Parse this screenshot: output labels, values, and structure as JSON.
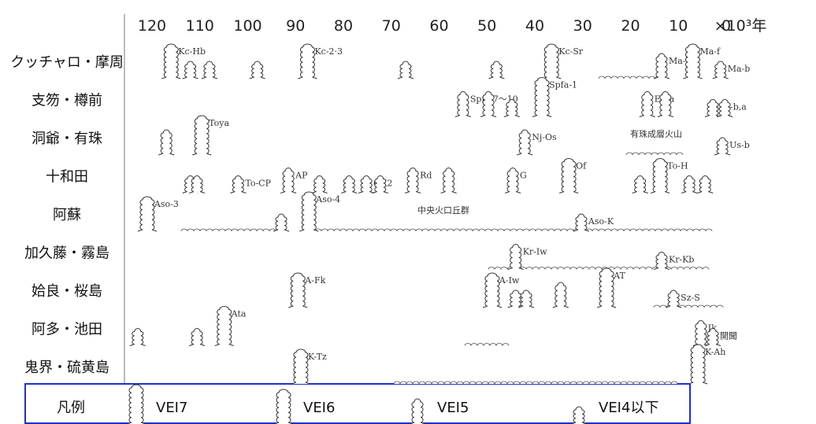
{
  "axis": {
    "ticks": [
      120,
      110,
      100,
      90,
      80,
      70,
      60,
      50,
      40,
      30,
      20,
      10,
      0
    ],
    "unit": "×10³年"
  },
  "rows": [
    {
      "name": "クッチャロ・摩周",
      "events": [
        {
          "label": "Kc-Hb",
          "age": 116,
          "vei": 6
        },
        {
          "label": null,
          "age": 112,
          "vei": 4
        },
        {
          "label": null,
          "age": 108,
          "vei": 4
        },
        {
          "label": null,
          "age": 98,
          "vei": 4
        },
        {
          "label": "Kc-2·3",
          "age": 87.5,
          "vei": 6
        },
        {
          "label": null,
          "age": 67,
          "vei": 4
        },
        {
          "label": null,
          "age": 48,
          "vei": 4
        },
        {
          "label": "Kc-Sr",
          "age": 36.5,
          "vei": 6
        },
        {
          "label": "Ma-l",
          "age": 13.5,
          "vei": 5
        },
        {
          "label": "Ma-f",
          "age": 7,
          "vei": 6
        },
        {
          "label": "Ma-b",
          "age": 1.2,
          "vei": 4
        }
      ]
    },
    {
      "name": "支笏・樽前",
      "events": [
        {
          "label": "Spfa-7～10",
          "age": 55,
          "vei": 5
        },
        {
          "label": null,
          "age": 49.7,
          "vei": 5
        },
        {
          "label": null,
          "age": 44.8,
          "vei": 4
        },
        {
          "label": "Spfa-1",
          "age": 38.5,
          "vei": 7
        },
        {
          "label": "En-a",
          "age": 16.5,
          "vei": 5
        },
        {
          "label": null,
          "age": 12.7,
          "vei": 5
        },
        {
          "label": "Ta-b,a",
          "age": 2.8,
          "vei": 4
        },
        {
          "label": null,
          "age": 0.3,
          "vei": 4
        }
      ]
    },
    {
      "name": "洞爺・有珠",
      "notes": [
        "有珠成層火山"
      ],
      "events": [
        {
          "label": null,
          "age": 117,
          "vei": 5
        },
        {
          "label": "Toya",
          "age": 109.6,
          "vei": 7
        },
        {
          "label": "Nj-Os",
          "age": 42.1,
          "vei": 5
        },
        {
          "label": "Us-b",
          "age": 0.8,
          "vei": 4
        }
      ]
    },
    {
      "name": "十和田",
      "events": [
        {
          "label": null,
          "age": 112,
          "vei": 4
        },
        {
          "label": null,
          "age": 110.6,
          "vei": 4
        },
        {
          "label": "To-CP",
          "age": 102,
          "vei": 4
        },
        {
          "label": "AP",
          "age": 91.5,
          "vei": 5
        },
        {
          "label": null,
          "age": 85,
          "vei": 4
        },
        {
          "label": null,
          "age": 78.8,
          "vei": 4
        },
        {
          "label": "OK2",
          "age": 75.2,
          "vei": 4
        },
        {
          "label": null,
          "age": 72.3,
          "vei": 4
        },
        {
          "label": "Rd",
          "age": 65.5,
          "vei": 5
        },
        {
          "label": null,
          "age": 58,
          "vei": 5
        },
        {
          "label": "G",
          "age": 44.6,
          "vei": 5
        },
        {
          "label": "Of",
          "age": 32.9,
          "vei": 6
        },
        {
          "label": null,
          "age": 18,
          "vei": 4
        },
        {
          "label": "To-H",
          "age": 13.8,
          "vei": 6
        },
        {
          "label": null,
          "age": 7.7,
          "vei": 4
        },
        {
          "label": null,
          "age": 4.4,
          "vei": 4
        }
      ]
    },
    {
      "name": "阿蘇",
      "notes": [
        "中央火口丘群"
      ],
      "events": [
        {
          "label": "Aso-3",
          "age": 121,
          "vei": 6
        },
        {
          "label": null,
          "age": 93,
          "vei": 4
        },
        {
          "label": "Aso-4",
          "age": 87.2,
          "vei": 7
        },
        {
          "label": "Aso-K",
          "age": 30.3,
          "vei": 4
        }
      ]
    },
    {
      "name": "加久藤・霧島",
      "events": [
        {
          "label": "Kr-Iw",
          "age": 44,
          "vei": 5
        },
        {
          "label": "Kr-Kb",
          "age": 13.5,
          "vei": 4
        }
      ]
    },
    {
      "name": "姶良・桜島",
      "events": [
        {
          "label": "A-Fk",
          "age": 89.5,
          "vei": 6
        },
        {
          "label": "A-Iw",
          "age": 48.9,
          "vei": 6
        },
        {
          "label": null,
          "age": 44,
          "vei": 4
        },
        {
          "label": null,
          "age": 41.8,
          "vei": 4
        },
        {
          "label": null,
          "age": 34.6,
          "vei": 5
        },
        {
          "label": "AT",
          "age": 25,
          "vei": 7
        },
        {
          "label": "Sz-S",
          "age": 11,
          "vei": 4
        }
      ]
    },
    {
      "name": "阿多・池田",
      "events": [
        {
          "label": null,
          "age": 123,
          "vei": 4
        },
        {
          "label": null,
          "age": 110.6,
          "vei": 4
        },
        {
          "label": "Ata",
          "age": 104.9,
          "vei": 7
        },
        {
          "label": "Ik",
          "age": 5.3,
          "vei": 5
        },
        {
          "label": "開聞",
          "age": 2.8,
          "vei": 4
        }
      ]
    },
    {
      "name": "鬼界・硫黄島",
      "events": [
        {
          "label": "K-Tz",
          "age": 88.9,
          "vei": 6
        },
        {
          "label": "K-Ah",
          "age": 5.9,
          "vei": 7
        }
      ]
    }
  ],
  "legend": {
    "title": "凡例",
    "items": [
      {
        "label": "VEI7",
        "vei": 7
      },
      {
        "label": "VEI6",
        "vei": 6
      },
      {
        "label": "VEI5",
        "vei": 5
      },
      {
        "label": "VEI4以下",
        "vei": 4
      }
    ]
  }
}
